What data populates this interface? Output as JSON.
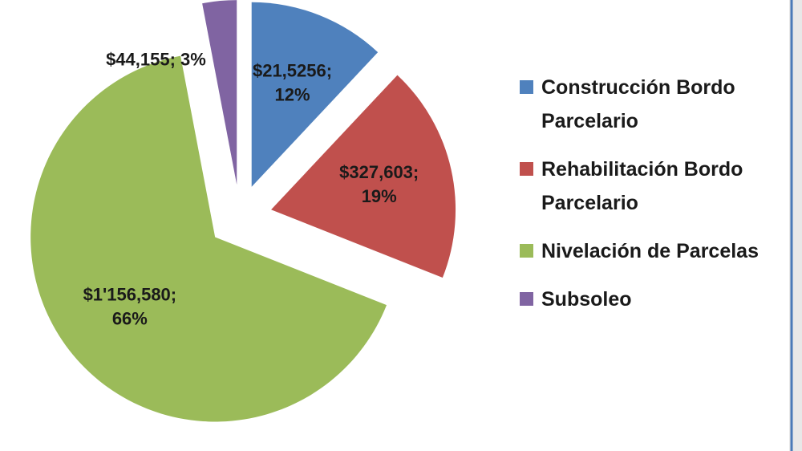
{
  "chart_data": {
    "type": "pie",
    "categories": [
      "Construcción Bordo Parcelario",
      "Rehabilitación Bordo Parcelario",
      "Nivelación de Parcelas",
      "Subsoleo"
    ],
    "values": [
      12,
      19,
      66,
      3
    ],
    "value_labels": [
      "$21,5256; 12%",
      "$327,603; 19%",
      "$1'156,580; 66%",
      "$44,155;  3%"
    ],
    "colors": [
      "#4f81bd",
      "#c0504d",
      "#9bbb59",
      "#8064a2"
    ],
    "legend": "right"
  }
}
